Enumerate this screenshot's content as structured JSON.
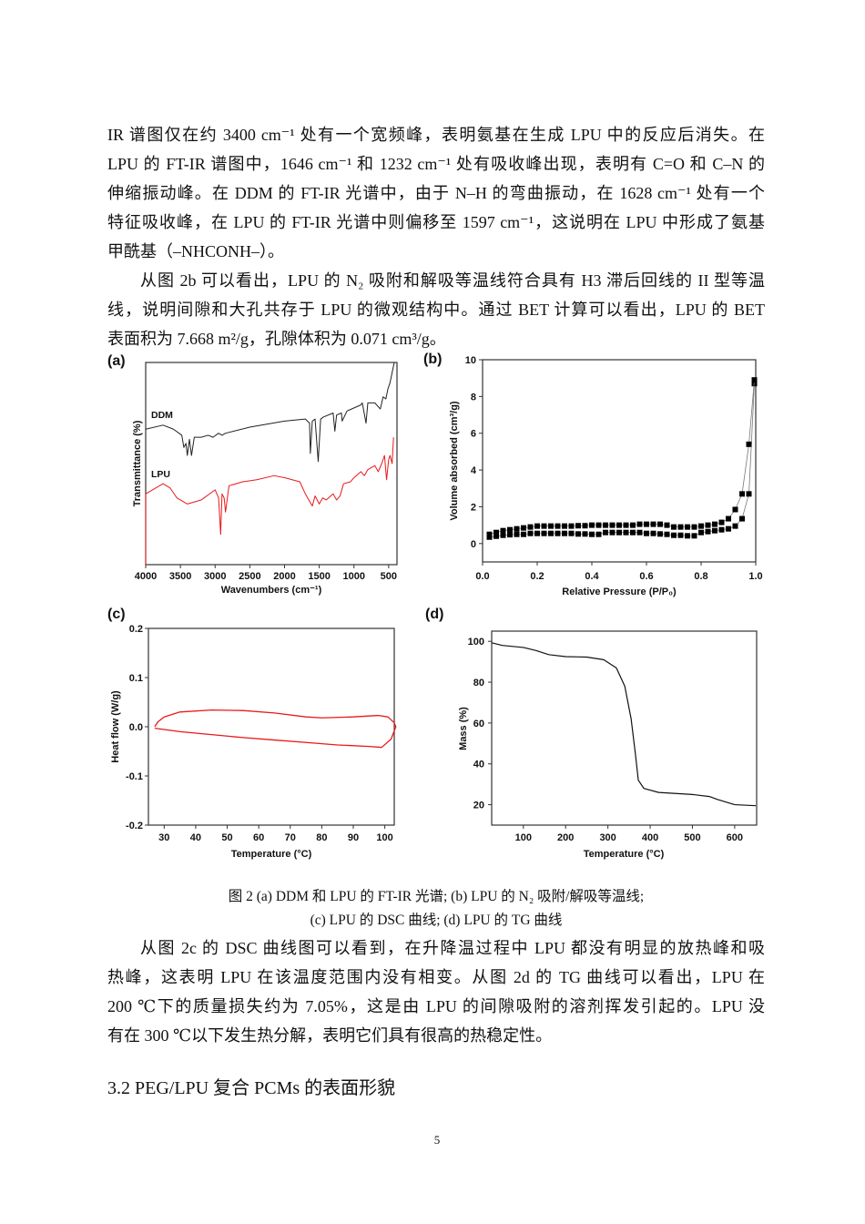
{
  "body": {
    "para1": [
      "IR 谱图仅在约 3400 cm⁻¹ 处有一个宽频峰，表明氨基在生成 LPU 中的反应后消失。在",
      "LPU 的 FT-IR 谱图中，1646 cm⁻¹ 和 1232 cm⁻¹ 处有吸收峰出现，表明有 C=O 和 C–N 的",
      "伸缩振动峰。在 DDM 的 FT-IR 光谱中，由于 N–H 的弯曲振动，在 1628 cm⁻¹ 处有一个",
      "特征吸收峰，在 LPU 的 FT-IR 光谱中则偏移至 1597 cm⁻¹，这说明在 LPU 中形成了氨基",
      "甲酰基（–NHCONH–）。"
    ],
    "para2": [
      "从图 2b 可以看出，LPU 的 N₂ 吸附和解吸等温线符合具有 H3 滞后回线的 II 型等温",
      "线，说明间隙和大孔共存于 LPU 的微观结构中。通过 BET 计算可以看出，LPU 的 BET",
      "表面积为 7.668 m²/g，孔隙体积为 0.071 cm³/g。"
    ],
    "caption": [
      "图 2 (a) DDM 和 LPU 的 FT-IR 光谱; (b) LPU 的 N₂ 吸附/解吸等温线;",
      "(c) LPU 的 DSC 曲线; (d) LPU 的 TG 曲线"
    ],
    "para3": [
      "从图 2c 的 DSC 曲线图可以看到，在升降温过程中 LPU 都没有明显的放热峰和吸",
      "热峰，这表明 LPU 在该温度范围内没有相变。从图 2d 的 TG 曲线可以看出，LPU 在",
      "200 ℃下的质量损失约为 7.05%，这是由 LPU 的间隙吸附的溶剂挥发引起的。LPU 没",
      "有在 300 ℃以下发生热分解，表明它们具有很高的热稳定性。"
    ],
    "heading": "3.2 PEG/LPU 复合 PCMs 的表面形貌",
    "page_number": "5"
  },
  "chart_data": [
    {
      "panel": "(a)",
      "type": "line",
      "xlabel": "Wavenumbers (cm⁻¹)",
      "ylabel": "Transmittance (%)",
      "xlim": [
        4000,
        380
      ],
      "ylim": [
        0,
        100
      ],
      "x_ticks": [
        4000,
        3500,
        3000,
        2500,
        2000,
        1500,
        1000,
        500
      ],
      "x_tick_labels": [
        "4000",
        "3500",
        "3000",
        "2500",
        "2000",
        "1500",
        "1000",
        "500"
      ],
      "y_ticks_shown": false,
      "grid": false,
      "series": [
        {
          "name": "DDM",
          "color": "#222222",
          "x": [
            4000,
            3750,
            3600,
            3480,
            3450,
            3420,
            3400,
            3370,
            3340,
            3300,
            3200,
            3100,
            3030,
            2950,
            2900,
            2850,
            2500,
            2000,
            1700,
            1640,
            1628,
            1600,
            1560,
            1515,
            1480,
            1440,
            1300,
            1275,
            1250,
            1180,
            1170,
            1100,
            900,
            880,
            826,
            800,
            700,
            620,
            580,
            540,
            510,
            480,
            450,
            420
          ],
          "y": [
            67,
            69,
            67,
            64,
            58,
            60,
            54,
            62,
            54,
            63,
            63,
            64,
            63,
            65,
            64,
            65,
            68,
            71,
            72,
            70,
            55,
            71,
            72,
            51,
            72,
            73,
            75,
            66,
            74,
            75,
            71,
            76,
            79,
            80,
            70,
            80,
            80,
            77,
            83,
            82,
            87,
            90,
            95,
            100
          ]
        },
        {
          "name": "LPU",
          "color": "#e8191b",
          "x": [
            4000,
            3900,
            3750,
            3650,
            3550,
            3400,
            3200,
            3000,
            2950,
            2920,
            2900,
            2870,
            2850,
            2800,
            2600,
            2400,
            2150,
            2000,
            1780,
            1700,
            1650,
            1600,
            1560,
            1500,
            1450,
            1400,
            1300,
            1250,
            1200,
            1150,
            1050,
            1000,
            900,
            850,
            800,
            700,
            650,
            600,
            560,
            530,
            500,
            480,
            450,
            430
          ],
          "y": [
            35,
            37,
            40,
            38,
            33,
            30,
            32,
            37,
            33,
            15,
            35,
            33,
            26,
            39,
            41,
            42,
            44,
            43,
            41,
            35,
            32,
            29,
            34,
            30,
            33,
            32,
            35,
            32,
            34,
            40,
            41,
            43,
            46,
            44,
            47,
            49,
            46,
            50,
            54,
            42,
            52,
            54,
            50,
            63
          ]
        }
      ]
    },
    {
      "panel": "(b)",
      "type": "scatter",
      "xlabel": "Relative Pressure (P/P₀)",
      "ylabel": "Volume absorbed (cm³/g)",
      "xlim": [
        0,
        1.0
      ],
      "ylim": [
        -1,
        10
      ],
      "x_ticks": [
        0,
        0.2,
        0.4,
        0.6,
        0.8,
        1.0
      ],
      "x_tick_labels": [
        "0.0",
        "0.2",
        "0.4",
        "0.6",
        "0.8",
        "1.0"
      ],
      "y_ticks": [
        0,
        2,
        4,
        6,
        8,
        10
      ],
      "y_tick_labels": [
        "0",
        "2",
        "4",
        "6",
        "8",
        "10"
      ],
      "grid": false,
      "marker_color": "#000000",
      "x": [
        0.025,
        0.05,
        0.075,
        0.1,
        0.125,
        0.15,
        0.175,
        0.2,
        0.225,
        0.25,
        0.275,
        0.3,
        0.325,
        0.35,
        0.375,
        0.4,
        0.425,
        0.45,
        0.475,
        0.5,
        0.525,
        0.55,
        0.575,
        0.6,
        0.625,
        0.65,
        0.675,
        0.7,
        0.725,
        0.75,
        0.775,
        0.8,
        0.825,
        0.85,
        0.875,
        0.9,
        0.925,
        0.95,
        0.975,
        0.995
      ],
      "series": [
        {
          "y": [
            0.35,
            0.4,
            0.45,
            0.48,
            0.5,
            0.5,
            0.55,
            0.55,
            0.55,
            0.55,
            0.55,
            0.55,
            0.55,
            0.52,
            0.52,
            0.5,
            0.5,
            0.6,
            0.6,
            0.6,
            0.6,
            0.6,
            0.6,
            0.55,
            0.55,
            0.52,
            0.5,
            0.45,
            0.45,
            0.42,
            0.42,
            0.6,
            0.65,
            0.7,
            0.75,
            0.8,
            0.95,
            1.35,
            2.7,
            8.7
          ]
        },
        {
          "y": [
            0.5,
            0.6,
            0.7,
            0.75,
            0.8,
            0.85,
            0.9,
            0.95,
            0.95,
            0.95,
            0.95,
            0.95,
            0.95,
            0.97,
            0.97,
            1.0,
            1.0,
            1.0,
            1.0,
            1.0,
            1.0,
            1.0,
            1.05,
            1.05,
            1.05,
            1.05,
            1.0,
            0.9,
            0.9,
            0.9,
            0.9,
            0.95,
            1.0,
            1.05,
            1.15,
            1.35,
            1.85,
            2.7,
            5.4,
            8.9
          ]
        }
      ]
    },
    {
      "panel": "(c)",
      "type": "line",
      "xlabel": "Temperature (°C)",
      "ylabel": "Heat flow (W/g)",
      "xlim": [
        25,
        103
      ],
      "ylim": [
        -0.2,
        0.2
      ],
      "x_ticks": [
        30,
        40,
        50,
        60,
        70,
        80,
        90,
        100
      ],
      "x_tick_labels": [
        "30",
        "40",
        "50",
        "60",
        "70",
        "80",
        "90",
        "100"
      ],
      "y_ticks": [
        0.2,
        0.1,
        0.0,
        -0.1,
        -0.2
      ],
      "y_tick_labels": [
        "0.2",
        "0.1",
        "0.0",
        "-0.1",
        "-0.2"
      ],
      "grid": false,
      "series": [
        {
          "color": "#e8191b",
          "x": [
            27,
            28,
            30,
            35,
            45,
            55,
            65,
            75,
            80,
            90,
            98,
            101,
            103,
            103.5,
            102,
            99,
            95,
            85,
            75,
            65,
            55,
            45,
            35,
            27
          ],
          "y": [
            0.0,
            0.01,
            0.02,
            0.03,
            0.034,
            0.033,
            0.028,
            0.02,
            0.018,
            0.02,
            0.023,
            0.02,
            0.008,
            0.0,
            -0.025,
            -0.042,
            -0.04,
            -0.037,
            -0.032,
            -0.027,
            -0.022,
            -0.016,
            -0.01,
            -0.003
          ]
        }
      ]
    },
    {
      "panel": "(d)",
      "type": "line",
      "xlabel": "Temperature (°C)",
      "ylabel": "Mass (%)",
      "xlim": [
        25,
        652
      ],
      "ylim": [
        10,
        105
      ],
      "x_ticks": [
        100,
        200,
        300,
        400,
        500,
        600
      ],
      "x_tick_labels": [
        "100",
        "200",
        "300",
        "400",
        "500",
        "600"
      ],
      "y_ticks": [
        20,
        40,
        60,
        80,
        100
      ],
      "y_tick_labels": [
        "20",
        "40",
        "60",
        "80",
        "100"
      ],
      "grid": false,
      "series": [
        {
          "color": "#111111",
          "x": [
            25,
            50,
            100,
            130,
            160,
            200,
            250,
            290,
            320,
            340,
            355,
            365,
            372,
            385,
            420,
            500,
            540,
            560,
            600,
            650
          ],
          "y": [
            99.3,
            98,
            97,
            95.5,
            93.5,
            92.5,
            92.3,
            91,
            87,
            78,
            62,
            45,
            32,
            28,
            26,
            25,
            24,
            22.5,
            20,
            19.5
          ]
        }
      ]
    }
  ]
}
